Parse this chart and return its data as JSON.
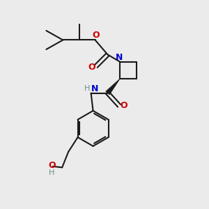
{
  "bg_color": "#ebebeb",
  "bond_color": "#1a1a1a",
  "N_color": "#0000cd",
  "O_color": "#cc0000",
  "H_color": "#6b8e8e",
  "line_width": 1.5,
  "figsize": [
    3.0,
    3.0
  ],
  "dpi": 100,
  "xlim": [
    0,
    10
  ],
  "ylim": [
    0,
    10
  ]
}
